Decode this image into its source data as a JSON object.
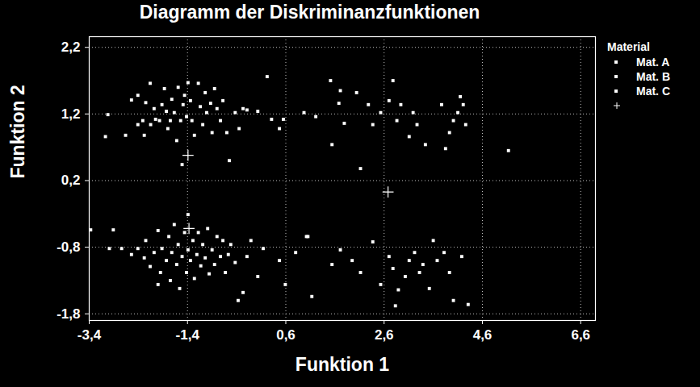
{
  "chart_data": {
    "type": "scatter",
    "title": "Diagramm der Diskriminanzfunktionen",
    "x_label": "Funktion 1",
    "y_label": "Funktion 2",
    "legend_title": "Material",
    "legend": "top-right",
    "grid": true,
    "xlim": [
      -3.4,
      6.9
    ],
    "ylim": [
      -1.9,
      2.36
    ],
    "xticks": [
      {
        "value": -3.4,
        "label": "-3,4"
      },
      {
        "value": -1.4,
        "label": "-1,4"
      },
      {
        "value": 0.6,
        "label": "0,6"
      },
      {
        "value": 2.6,
        "label": "2,6"
      },
      {
        "value": 4.6,
        "label": "4,6"
      },
      {
        "value": 6.6,
        "label": "6,6"
      }
    ],
    "yticks": [
      {
        "value": -1.8,
        "label": "-1,8"
      },
      {
        "value": -0.8,
        "label": "-0,8"
      },
      {
        "value": 0.2,
        "label": "0,2"
      },
      {
        "value": 1.2,
        "label": "1,2"
      },
      {
        "value": 2.2,
        "label": "2,2"
      }
    ],
    "series": [
      {
        "name": "Mat. A",
        "color": "#ffffff",
        "marker": "square",
        "x": [
          -3.02,
          -3.07,
          -2.66,
          -2.54,
          -2.41,
          -2.16,
          -2.25,
          -2.31,
          -2.28,
          -2.15,
          -2.08,
          -2.05,
          -1.97,
          -1.92,
          -1.87,
          -1.8,
          -1.75,
          -1.72,
          -1.67,
          -1.62,
          -1.59,
          -1.54,
          -1.49,
          -1.46,
          -1.42,
          -1.39,
          -1.34,
          -1.31,
          -1.26,
          -1.18,
          -1.14,
          -1.09,
          -1.04,
          -1.01,
          -0.93,
          -0.9,
          -0.85,
          -0.8,
          -0.73,
          -0.68,
          -0.6,
          -0.55,
          -0.43,
          -0.35,
          -0.27,
          -0.19,
          0.03,
          0.22,
          0.31,
          0.55,
          0.47,
          -1.51,
          -2.41,
          -1.83
        ],
        "y": [
          1.19,
          0.86,
          0.88,
          1.41,
          1.48,
          1.66,
          1.37,
          1.1,
          0.88,
          1.04,
          1.28,
          1.12,
          1.1,
          1.34,
          1.58,
          0.98,
          1.1,
          1.42,
          1.22,
          0.8,
          1.6,
          1.1,
          1.34,
          1.48,
          1.16,
          1.67,
          1.4,
          1.1,
          0.88,
          1.66,
          1.31,
          1.04,
          1.52,
          1.22,
          1.36,
          0.92,
          1.58,
          1.28,
          1.1,
          1.4,
          0.92,
          0.5,
          1.22,
          0.98,
          1.28,
          1.26,
          1.24,
          1.76,
          1.12,
          1.12,
          0.98,
          0.44,
          1.04,
          1.24
        ]
      },
      {
        "name": "Mat. B",
        "color": "#ffffff",
        "marker": "square",
        "x": [
          -3.37,
          -2.91,
          -2.99,
          -2.74,
          -2.54,
          -2.41,
          -2.28,
          -2.25,
          -2.16,
          -2.08,
          -2.0,
          -1.95,
          -1.92,
          -1.83,
          -1.78,
          -1.75,
          -1.72,
          -1.67,
          -1.62,
          -1.59,
          -1.56,
          -1.51,
          -1.46,
          -1.42,
          -1.39,
          -1.34,
          -1.29,
          -1.26,
          -1.21,
          -1.18,
          -1.13,
          -1.09,
          -1.04,
          -0.99,
          -0.96,
          -0.9,
          -0.85,
          -0.8,
          -0.73,
          -0.68,
          -0.63,
          -0.57,
          -0.52,
          -0.43,
          -0.37,
          -0.27,
          -0.19,
          -0.11,
          0.03,
          0.14,
          0.47,
          0.59,
          0.8,
          1.05,
          -1.39,
          -2.0
        ],
        "y": [
          -0.54,
          -0.54,
          -0.82,
          -0.82,
          -0.91,
          -0.82,
          -0.96,
          -0.7,
          -1.09,
          -0.88,
          -0.55,
          -1.18,
          -0.82,
          -1.0,
          -0.64,
          -1.3,
          -0.88,
          -0.46,
          -1.06,
          -0.76,
          -1.42,
          -0.94,
          -0.58,
          -1.18,
          -0.84,
          -1.0,
          -0.7,
          -1.27,
          -0.91,
          -0.58,
          -1.08,
          -0.76,
          -0.96,
          -0.52,
          -1.2,
          -0.84,
          -1.06,
          -0.64,
          -0.94,
          -0.7,
          -1.18,
          -0.91,
          -0.76,
          -1.03,
          -1.6,
          -1.48,
          -0.94,
          -0.7,
          -1.24,
          -0.82,
          -1.0,
          -1.36,
          -0.88,
          -0.64,
          -0.31,
          -1.36
        ]
      },
      {
        "name": "Mat. C",
        "color": "#ffffff",
        "marker": "square",
        "x": [
          1.51,
          1.71,
          1.68,
          1.54,
          1.79,
          2.04,
          2.28,
          2.37,
          2.12,
          2.53,
          2.7,
          2.78,
          2.86,
          2.94,
          3.11,
          3.19,
          3.27,
          3.44,
          3.77,
          3.85,
          3.93,
          4.01,
          4.1,
          4.15,
          4.21,
          4.26,
          5.13,
          0.97,
          1.21,
          1.02,
          1.13,
          1.54,
          1.71,
          1.95,
          2.12,
          2.37,
          2.53,
          2.7,
          2.78,
          2.83,
          2.89,
          3.03,
          3.11,
          3.22,
          3.32,
          3.39,
          3.52,
          3.68,
          3.82,
          3.93,
          4.01,
          4.18,
          4.31,
          3.6
        ],
        "y": [
          1.7,
          1.55,
          1.36,
          0.74,
          1.06,
          1.52,
          1.34,
          1.04,
          0.38,
          1.22,
          1.4,
          1.7,
          1.1,
          1.34,
          0.86,
          1.22,
          1.04,
          0.74,
          1.34,
          0.68,
          0.92,
          1.1,
          1.22,
          1.46,
          1.34,
          1.04,
          0.65,
          1.22,
          1.16,
          -0.64,
          -1.54,
          -1.06,
          -0.84,
          -1.0,
          -1.18,
          -0.72,
          -1.36,
          -0.94,
          -1.12,
          -1.68,
          -1.44,
          -1.24,
          -1.0,
          -0.88,
          -1.18,
          -1.06,
          -1.42,
          -1.0,
          -0.88,
          -1.18,
          -1.6,
          -0.94,
          -1.66,
          -0.7
        ]
      }
    ],
    "centroids": {
      "color": "#ffffff",
      "marker": "plus",
      "x": [
        -1.39,
        -1.37,
        2.68
      ],
      "y": [
        0.58,
        -0.52,
        0.03
      ]
    }
  }
}
